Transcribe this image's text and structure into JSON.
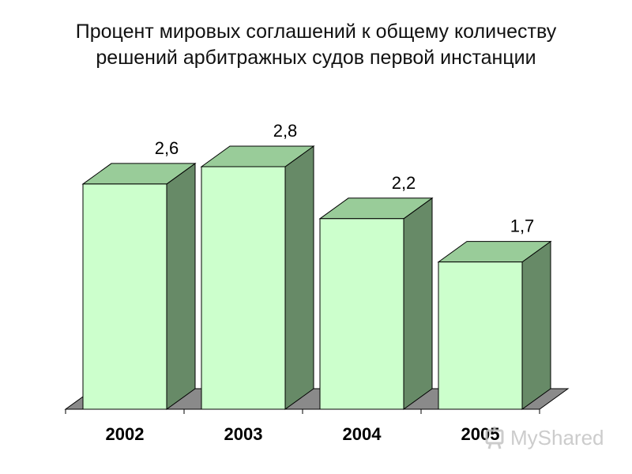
{
  "title_lines": [
    "Процент мировых соглашений к общему количеству",
    "решений арбитражных судов первой инстанции"
  ],
  "colors": {
    "bar_front": "#ccffcc",
    "bar_top": "#99cc99",
    "bar_side": "#678a67",
    "floor": "#8a8a8a",
    "outline": "#000000"
  },
  "watermark": {
    "text": "MyShared",
    "icon": "myshared-logo-icon"
  },
  "chart_data": {
    "type": "bar",
    "categories": [
      "2002",
      "2003",
      "2004",
      "2005"
    ],
    "values": [
      2.6,
      2.8,
      2.2,
      1.7
    ],
    "value_labels": [
      "2,6",
      "2,8",
      "2,2",
      "1,7"
    ],
    "title": "Процент мировых соглашений к общему количеству решений арбитражных судов первой инстанции",
    "xlabel": "",
    "ylabel": "",
    "ylim": [
      0,
      2.8
    ],
    "grid": false,
    "legend": "none",
    "style": "3d"
  }
}
